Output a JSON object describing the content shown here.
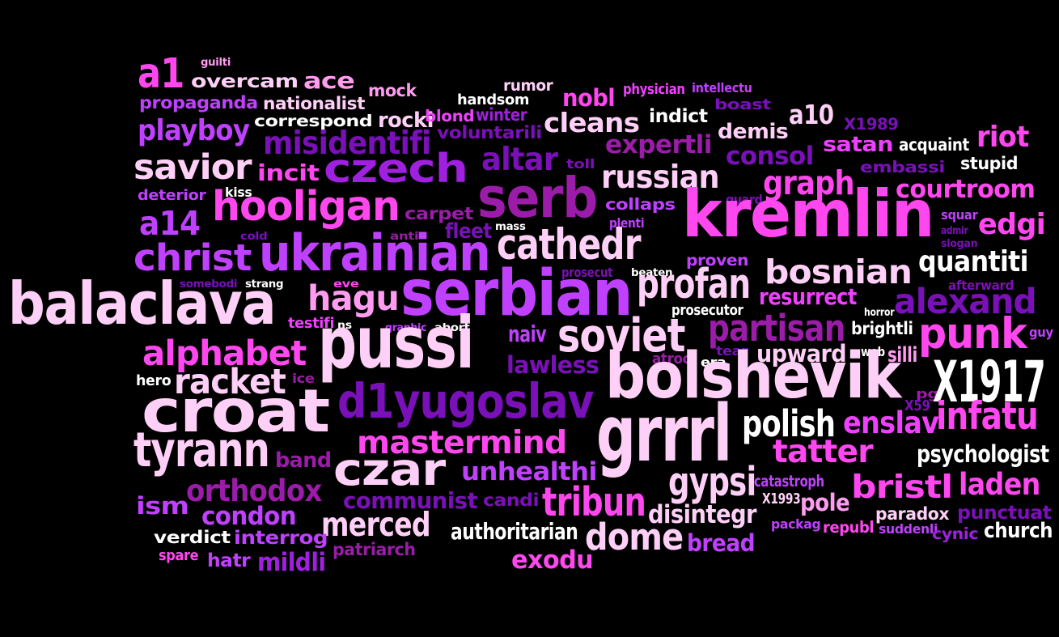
{
  "palette": {
    "background": "#000000",
    "W": "#ffffff",
    "P1": "#ffd0f7",
    "P2": "#ff9cf0",
    "M": "#ff47f0",
    "M2": "#f040ff",
    "V": "#c040ff",
    "V2": "#a020e0",
    "D": "#7a10b8",
    "D2": "#9b1ca8"
  },
  "words": [
    [
      "guilti",
      "P2"
    ],
    [
      "a1",
      "M"
    ],
    [
      "overcam",
      "P1"
    ],
    [
      "ace",
      "P2"
    ],
    [
      "mock",
      "P2"
    ],
    [
      "rumor",
      "P1"
    ],
    [
      "physician",
      "M2"
    ],
    [
      "intellectu",
      "V"
    ],
    [
      "propaganda",
      "V"
    ],
    [
      "nationalist",
      "P1"
    ],
    [
      "handsom",
      "W"
    ],
    [
      "nobl",
      "M"
    ],
    [
      "boast",
      "D"
    ],
    [
      "correspond",
      "W"
    ],
    [
      "rocki",
      "P1"
    ],
    [
      "blond",
      "M2"
    ],
    [
      "winter",
      "V2"
    ],
    [
      "indict",
      "W"
    ],
    [
      "cleans",
      "P1"
    ],
    [
      "a10",
      "P1"
    ],
    [
      "X1989",
      "D"
    ],
    [
      "playboy",
      "V"
    ],
    [
      "misidentifi",
      "D"
    ],
    [
      "voluntarili",
      "D"
    ],
    [
      "demis",
      "P1"
    ],
    [
      "satan",
      "M2"
    ],
    [
      "acquaint",
      "W"
    ],
    [
      "riot",
      "M"
    ],
    [
      "savior",
      "P1"
    ],
    [
      "czech",
      "V2"
    ],
    [
      "altar",
      "D"
    ],
    [
      "expertli",
      "D2"
    ],
    [
      "consol",
      "D"
    ],
    [
      "toll",
      "D"
    ],
    [
      "embassi",
      "D"
    ],
    [
      "stupid",
      "W"
    ],
    [
      "incit",
      "M"
    ],
    [
      "russian",
      "P1"
    ],
    [
      "graph",
      "M"
    ],
    [
      "deterior",
      "V"
    ],
    [
      "kiss",
      "W"
    ],
    [
      "serb",
      "D2"
    ],
    [
      "collaps",
      "V"
    ],
    [
      "guard",
      "D"
    ],
    [
      "courtroom",
      "M"
    ],
    [
      "hooligan",
      "M"
    ],
    [
      "carpet",
      "D2"
    ],
    [
      "a14",
      "V"
    ],
    [
      "cold",
      "D"
    ],
    [
      "mass",
      "W"
    ],
    [
      "plenti",
      "V"
    ],
    [
      "kremlin",
      "M"
    ],
    [
      "squar",
      "V"
    ],
    [
      "edgi",
      "M"
    ],
    [
      "anti",
      "D2"
    ],
    [
      "fleet",
      "D"
    ],
    [
      "admir",
      "D"
    ],
    [
      "slogan",
      "D"
    ],
    [
      "christ",
      "V"
    ],
    [
      "ukrainian",
      "V"
    ],
    [
      "cathedr",
      "P1"
    ],
    [
      "proven",
      "V"
    ],
    [
      "quantiti",
      "W"
    ],
    [
      "bosnian",
      "P1"
    ],
    [
      "prosecut",
      "D"
    ],
    [
      "beaten",
      "W"
    ],
    [
      "somebodi",
      "D"
    ],
    [
      "strang",
      "W"
    ],
    [
      "eve",
      "M"
    ],
    [
      "afterward",
      "D"
    ],
    [
      "balaclava",
      "P1"
    ],
    [
      "hagu",
      "P2"
    ],
    [
      "serbian",
      "V"
    ],
    [
      "profan",
      "P1"
    ],
    [
      "resurrect",
      "M2"
    ],
    [
      "alexand",
      "D"
    ],
    [
      "prosecutor",
      "W"
    ],
    [
      "horror",
      "W"
    ],
    [
      "testifi",
      "M2"
    ],
    [
      "ns",
      "W"
    ],
    [
      "graphic",
      "V"
    ],
    [
      "abort",
      "W"
    ],
    [
      "partisan",
      "D2"
    ],
    [
      "brightli",
      "W"
    ],
    [
      "guy",
      "V"
    ],
    [
      "pussi",
      "P1"
    ],
    [
      "naiv",
      "V"
    ],
    [
      "soviet",
      "P1"
    ],
    [
      "punk",
      "M"
    ],
    [
      "alphabet",
      "M"
    ],
    [
      "tear",
      "D"
    ],
    [
      "atroc",
      "D2"
    ],
    [
      "era",
      "W"
    ],
    [
      "web",
      "W"
    ],
    [
      "silli",
      "P2"
    ],
    [
      "upward",
      "P1"
    ],
    [
      "lawless",
      "D"
    ],
    [
      "hero",
      "W"
    ],
    [
      "ice",
      "D2"
    ],
    [
      "racket",
      "P1"
    ],
    [
      "bolshevik",
      "P1"
    ],
    [
      "pg",
      "D2"
    ],
    [
      "X1917",
      "W"
    ],
    [
      "croat",
      "P1"
    ],
    [
      "d1yugoslav",
      "D"
    ],
    [
      "X59",
      "D"
    ],
    [
      "infatu",
      "M"
    ],
    [
      "grrrl",
      "P1"
    ],
    [
      "polish",
      "W"
    ],
    [
      "enslav",
      "M2"
    ],
    [
      "tyrann",
      "P1"
    ],
    [
      "mastermind",
      "M"
    ],
    [
      "tatter",
      "M"
    ],
    [
      "psychologist",
      "W"
    ],
    [
      "band",
      "D2"
    ],
    [
      "czar",
      "P1"
    ],
    [
      "unhealthi",
      "V"
    ],
    [
      "gypsi",
      "P1"
    ],
    [
      "catastroph",
      "V"
    ],
    [
      "bristl",
      "M"
    ],
    [
      "laden",
      "M"
    ],
    [
      "orthodox",
      "D2"
    ],
    [
      "ism",
      "V"
    ],
    [
      "tribun",
      "M"
    ],
    [
      "X1993",
      "P1"
    ],
    [
      "pole",
      "P2"
    ],
    [
      "communist",
      "D"
    ],
    [
      "candi",
      "D"
    ],
    [
      "condon",
      "V"
    ],
    [
      "disintegr",
      "P1"
    ],
    [
      "punctuat",
      "D"
    ],
    [
      "paradox",
      "P1"
    ],
    [
      "merced",
      "P1"
    ],
    [
      "packag",
      "V"
    ],
    [
      "republ",
      "M"
    ],
    [
      "suddenli",
      "V"
    ],
    [
      "cynic",
      "V2"
    ],
    [
      "church",
      "W"
    ],
    [
      "verdict",
      "W"
    ],
    [
      "interrog",
      "V"
    ],
    [
      "authoritarian",
      "W"
    ],
    [
      "dome",
      "P1"
    ],
    [
      "bread",
      "V"
    ],
    [
      "spare",
      "M"
    ],
    [
      "hatr",
      "V"
    ],
    [
      "mildli",
      "V2"
    ],
    [
      "patriarch",
      "D2"
    ],
    [
      "exodu",
      "M"
    ]
  ]
}
